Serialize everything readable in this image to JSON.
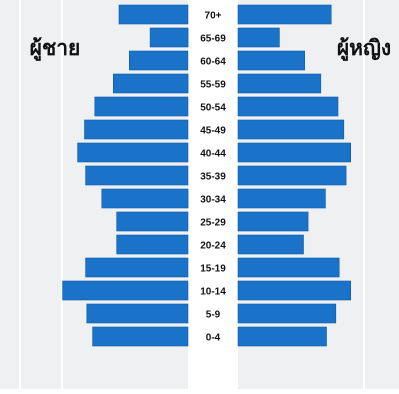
{
  "chart_data": {
    "type": "bar",
    "subtype": "population-pyramid",
    "categories": [
      "70+",
      "65-69",
      "60-64",
      "55-59",
      "50-54",
      "45-49",
      "40-44",
      "35-39",
      "30-34",
      "25-29",
      "20-24",
      "15-19",
      "10-14",
      "5-9",
      "0-4"
    ],
    "series": [
      {
        "name": "ผู้ชาย",
        "side": "left",
        "values": [
          0.6,
          0.33,
          0.51,
          0.65,
          0.81,
          0.9,
          0.96,
          0.89,
          0.75,
          0.62,
          0.62,
          0.89,
          1.09,
          0.88,
          0.83
        ]
      },
      {
        "name": "ผู้หญิง",
        "side": "right",
        "values": [
          0.81,
          0.36,
          0.58,
          0.72,
          0.87,
          0.92,
          0.98,
          0.94,
          0.76,
          0.61,
          0.57,
          0.88,
          0.98,
          0.85,
          0.77
        ]
      }
    ],
    "xlabel": "",
    "ylabel": "",
    "title": "",
    "grid": true,
    "colors": {
      "bar": "#1a73c9",
      "bar_edge": "#0f5aa5",
      "background": "#eef0f2",
      "gridline": "#ffffff",
      "center_strip": "#ffffff",
      "label_text": "#111111"
    }
  }
}
